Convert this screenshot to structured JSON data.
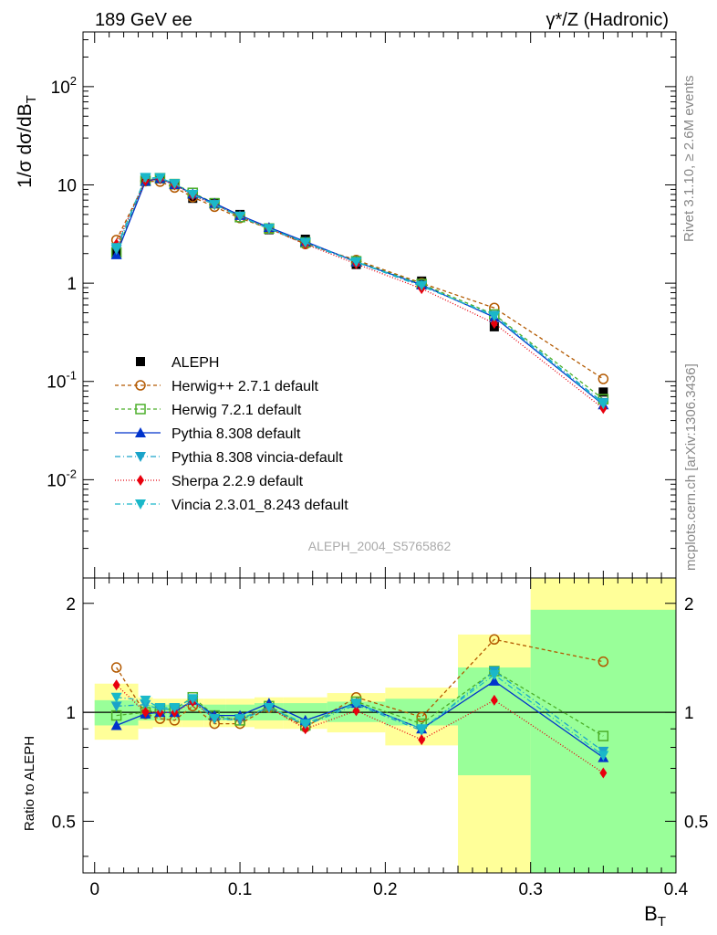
{
  "title_left": "189 GeV ee",
  "title_right": "γ*/Z (Hadronic)",
  "side_label_rivet": "Rivet 3.1.10, ≥ 2.6M events",
  "side_label_mcplots": "mcplots.cern.ch [arXiv:1306.3436]",
  "watermark": "ALEPH_2004_S5765862",
  "colors": {
    "band_inner": "#99ff99",
    "band_outer": "#ffff99",
    "aleph": "#000000",
    "herwigpp": "#b35900",
    "herwig7": "#4caf2a",
    "pythia": "#0033cc",
    "pythia_vincia": "#1aa3c9",
    "sherpa": "#e8000d",
    "vincia": "#1ab8c9"
  },
  "chart_data": [
    {
      "type": "line",
      "panel": "main",
      "ylabel": "1/σ  dσ/dB_T",
      "yscale": "log",
      "ylim": [
        0.001,
        360
      ],
      "xlim": [
        -0.008,
        0.4
      ],
      "yticks_major": [
        "10^-2",
        "10^-1",
        "1",
        "10",
        "10^2"
      ],
      "legend_position": "left-middle",
      "x": [
        0.015,
        0.035,
        0.045,
        0.055,
        0.0675,
        0.0825,
        0.1,
        0.12,
        0.145,
        0.18,
        0.225,
        0.275,
        0.35
      ],
      "series": [
        {
          "name": "ALEPH",
          "marker": "square-filled",
          "values": [
            2.1,
            11.0,
            11.5,
            10.0,
            7.3,
            6.6,
            5.0,
            3.5,
            2.8,
            1.55,
            1.05,
            0.36,
            0.078
          ]
        },
        {
          "name": "Herwig++ 2.7.1 default",
          "marker": "circle-open",
          "dash": "4,3",
          "values": [
            2.75,
            10.9,
            10.8,
            9.4,
            7.5,
            6.0,
            4.6,
            3.6,
            2.5,
            1.72,
            1.0,
            0.56,
            0.106
          ]
        },
        {
          "name": "Herwig 7.2.1 default",
          "marker": "square-open",
          "dash": "4,3",
          "values": [
            2.05,
            11.0,
            11.7,
            10.2,
            8.3,
            6.5,
            4.7,
            3.6,
            2.6,
            1.67,
            0.98,
            0.48,
            0.066
          ]
        },
        {
          "name": "Pythia 8.308 default",
          "marker": "triangle-up",
          "dash": "",
          "values": [
            1.95,
            10.9,
            11.6,
            10.1,
            8.1,
            6.5,
            4.9,
            3.7,
            2.65,
            1.65,
            0.96,
            0.45,
            0.058
          ]
        },
        {
          "name": "Pythia 8.308 vincia-default",
          "marker": "triangle-down",
          "dash": "6,3,1,3",
          "values": [
            2.2,
            11.6,
            11.8,
            10.2,
            7.9,
            6.3,
            4.75,
            3.6,
            2.55,
            1.64,
            0.93,
            0.47,
            0.061
          ]
        },
        {
          "name": "Sherpa 2.2.9 default",
          "marker": "diamond",
          "dash": "1,2",
          "values": [
            2.5,
            11.0,
            11.5,
            10.0,
            7.8,
            6.3,
            4.8,
            3.6,
            2.5,
            1.57,
            0.88,
            0.39,
            0.053
          ]
        },
        {
          "name": "Vincia 2.3.01_8.243 default",
          "marker": "triangle-down",
          "dash": "6,3,1,3",
          "values": [
            2.3,
            11.9,
            11.8,
            10.3,
            8.0,
            6.3,
            4.8,
            3.6,
            2.6,
            1.65,
            0.95,
            0.46,
            0.059
          ]
        }
      ]
    },
    {
      "type": "line",
      "panel": "ratio",
      "xlabel": "B_T",
      "ylabel": "Ratio to ALEPH",
      "yscale": "log",
      "ylim": [
        0.36,
        2.35
      ],
      "xlim": [
        -0.008,
        0.4
      ],
      "xticks": [
        "0",
        "0.1",
        "0.2",
        "0.3",
        "0.4"
      ],
      "yticks": [
        "0.5",
        "1",
        "2"
      ],
      "bins": [
        {
          "low": 0.0,
          "high": 0.03,
          "inner": [
            0.92,
            1.08
          ],
          "outer": [
            0.84,
            1.2
          ]
        },
        {
          "low": 0.03,
          "high": 0.04,
          "inner": [
            0.95,
            1.05
          ],
          "outer": [
            0.9,
            1.1
          ]
        },
        {
          "low": 0.04,
          "high": 0.05,
          "inner": [
            0.95,
            1.05
          ],
          "outer": [
            0.91,
            1.09
          ]
        },
        {
          "low": 0.05,
          "high": 0.06,
          "inner": [
            0.95,
            1.05
          ],
          "outer": [
            0.91,
            1.09
          ]
        },
        {
          "low": 0.06,
          "high": 0.075,
          "inner": [
            0.95,
            1.05
          ],
          "outer": [
            0.91,
            1.09
          ]
        },
        {
          "low": 0.075,
          "high": 0.09,
          "inner": [
            0.95,
            1.05
          ],
          "outer": [
            0.91,
            1.09
          ]
        },
        {
          "low": 0.09,
          "high": 0.11,
          "inner": [
            0.95,
            1.05
          ],
          "outer": [
            0.91,
            1.09
          ]
        },
        {
          "low": 0.11,
          "high": 0.13,
          "inner": [
            0.95,
            1.06
          ],
          "outer": [
            0.9,
            1.1
          ]
        },
        {
          "low": 0.13,
          "high": 0.16,
          "inner": [
            0.95,
            1.06
          ],
          "outer": [
            0.9,
            1.1
          ]
        },
        {
          "low": 0.16,
          "high": 0.2,
          "inner": [
            0.94,
            1.07
          ],
          "outer": [
            0.88,
            1.13
          ]
        },
        {
          "low": 0.2,
          "high": 0.25,
          "inner": [
            0.92,
            1.09
          ],
          "outer": [
            0.81,
            1.17
          ]
        },
        {
          "low": 0.25,
          "high": 0.3,
          "inner": [
            0.67,
            1.33
          ],
          "outer": [
            0.36,
            1.64
          ]
        },
        {
          "low": 0.3,
          "high": 0.4,
          "inner": [
            0.36,
            1.92
          ],
          "outer": [
            0.36,
            2.35
          ]
        }
      ],
      "x": [
        0.015,
        0.035,
        0.045,
        0.055,
        0.0675,
        0.0825,
        0.1,
        0.12,
        0.145,
        0.18,
        0.225,
        0.275,
        0.35
      ],
      "series": [
        {
          "name": "Herwig++ 2.7.1 default",
          "marker": "circle-open",
          "dash": "4,3",
          "values": [
            1.33,
            0.99,
            0.96,
            0.95,
            1.04,
            0.93,
            0.93,
            1.03,
            0.91,
            1.1,
            0.97,
            1.59,
            1.38
          ]
        },
        {
          "name": "Herwig 7.2.1 default",
          "marker": "square-open",
          "dash": "4,3",
          "values": [
            0.98,
            1.0,
            1.02,
            1.02,
            1.1,
            0.98,
            0.95,
            1.04,
            0.92,
            1.07,
            0.93,
            1.3,
            0.86
          ]
        },
        {
          "name": "Pythia 8.308 default",
          "marker": "triangle-up",
          "dash": "",
          "values": [
            0.92,
            0.99,
            1.0,
            1.0,
            1.08,
            0.98,
            0.98,
            1.06,
            0.95,
            1.06,
            0.9,
            1.22,
            0.75
          ]
        },
        {
          "name": "Pythia 8.308 vincia-default",
          "marker": "triangle-down",
          "dash": "6,3,1,3",
          "values": [
            1.04,
            1.05,
            1.02,
            1.02,
            1.07,
            0.96,
            0.95,
            1.03,
            0.92,
            1.05,
            0.89,
            1.3,
            0.78
          ]
        },
        {
          "name": "Sherpa 2.2.9 default",
          "marker": "diamond",
          "dash": "1,2",
          "values": [
            1.19,
            1.0,
            1.0,
            1.0,
            1.07,
            0.96,
            0.96,
            1.03,
            0.9,
            1.01,
            0.84,
            1.08,
            0.68
          ]
        },
        {
          "name": "Vincia 2.3.01_8.243 default",
          "marker": "triangle-down",
          "dash": "6,3,1,3",
          "values": [
            1.1,
            1.08,
            1.03,
            1.03,
            1.09,
            0.96,
            0.96,
            1.03,
            0.93,
            1.06,
            0.9,
            1.27,
            0.76
          ]
        }
      ]
    }
  ]
}
